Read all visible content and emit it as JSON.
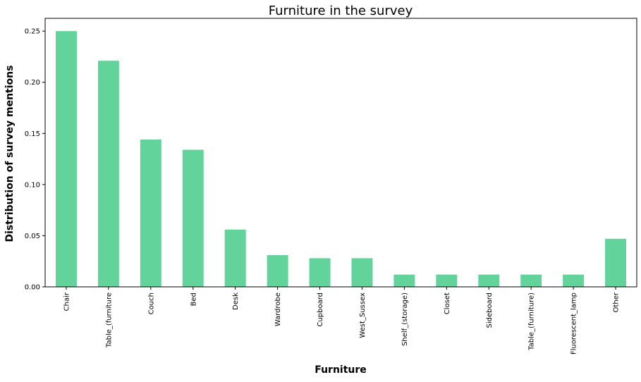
{
  "chart_data": {
    "type": "bar",
    "title": "Furniture in the survey",
    "xlabel": "Furniture",
    "ylabel": "Distribution of survey mentions",
    "categories": [
      "Chair",
      "Table_(furniture",
      "Couch",
      "Bed",
      "Desk",
      "Wardrobe",
      "Cupboard",
      "West_Sussex",
      "Shelf_(storage)",
      "Closet",
      "Sideboard",
      "Table_(furniture)",
      "Fluorescent_lamp",
      "Other"
    ],
    "values": [
      0.25,
      0.221,
      0.144,
      0.134,
      0.056,
      0.031,
      0.028,
      0.028,
      0.012,
      0.012,
      0.012,
      0.012,
      0.012,
      0.047
    ],
    "ylim": [
      0,
      0.2625
    ],
    "yticks": [
      0.0,
      0.05,
      0.1,
      0.15,
      0.2,
      0.25
    ],
    "ytick_labels": [
      "0.00",
      "0.05",
      "0.10",
      "0.15",
      "0.20",
      "0.25"
    ],
    "grid": false,
    "legend": "none",
    "bar_color": "#62d39a"
  }
}
